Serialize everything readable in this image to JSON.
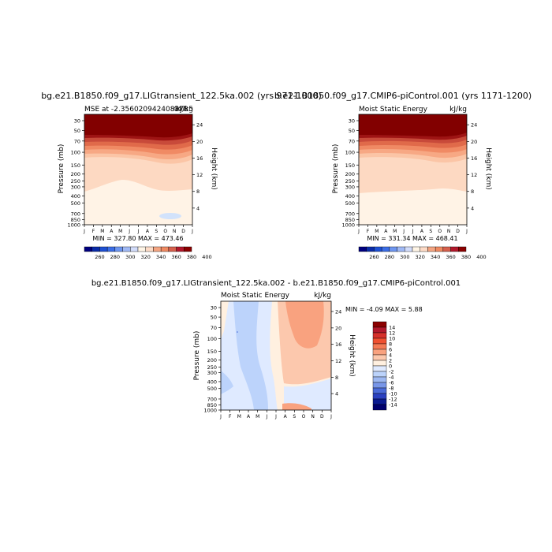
{
  "chart_data": [
    {
      "type": "heatmap",
      "title": "bg.e21.B1850.f09_g17.LIGtransient_122.5ka.002 (yrs 971-1000)",
      "subtitle_left": "MSE at -2.356020942408378",
      "subtitle_right": "kJ/kg",
      "subtitle_overlap": "447.5",
      "variable": "Moist Static Energy",
      "units": "kJ/kg",
      "xlabel": "",
      "x_ticks": [
        "J",
        "F",
        "M",
        "A",
        "M",
        "J",
        "J",
        "A",
        "S",
        "O",
        "N",
        "D",
        "J"
      ],
      "ylabel_left": "Pressure (mb)",
      "y_ticks_left": [
        "30",
        "50",
        "70",
        "100",
        "150",
        "200",
        "250",
        "300",
        "400",
        "500",
        "700",
        "850",
        "1000"
      ],
      "ylabel_right": "Height (km)",
      "y_ticks_right": [
        "24",
        "20",
        "16",
        "12",
        "8",
        "4"
      ],
      "min": 327.8,
      "max": 473.46,
      "minmax_text": "MIN = 327.80 MAX = 473.46",
      "colorbar_labels": [
        "260",
        "280",
        "300",
        "320",
        "340",
        "360",
        "380",
        "400"
      ]
    },
    {
      "type": "heatmap",
      "title": "b.e21.B1850.f09_g17.CMIP6-piControl.001 (yrs 1171-1200)",
      "subtitle_left": "Moist Static Energy",
      "subtitle_right": "kJ/kg",
      "variable": "Moist Static Energy",
      "units": "kJ/kg",
      "xlabel": "",
      "x_ticks": [
        "J",
        "F",
        "M",
        "A",
        "M",
        "J",
        "J",
        "A",
        "S",
        "O",
        "N",
        "D",
        "J"
      ],
      "ylabel_left": "Pressure (mb)",
      "y_ticks_left": [
        "30",
        "50",
        "70",
        "100",
        "150",
        "200",
        "250",
        "300",
        "400",
        "500",
        "700",
        "850",
        "1000"
      ],
      "ylabel_right": "Height (km)",
      "y_ticks_right": [
        "24",
        "20",
        "16",
        "12",
        "8",
        "4"
      ],
      "min": 331.34,
      "max": 468.41,
      "minmax_text": "MIN = 331.34 MAX = 468.41",
      "colorbar_labels": [
        "260",
        "280",
        "300",
        "320",
        "340",
        "360",
        "380",
        "400"
      ]
    },
    {
      "type": "heatmap",
      "title": "bg.e21.B1850.f09_g17.LIGtransient_122.5ka.002 - b.e21.B1850.f09_g17.CMIP6-piControl.001",
      "subtitle_left": "Moist Static Energy",
      "subtitle_right": "kJ/kg",
      "variable": "Moist Static Energy",
      "units": "kJ/kg",
      "xlabel": "",
      "x_ticks": [
        "J",
        "F",
        "M",
        "A",
        "M",
        "J",
        "J",
        "A",
        "S",
        "O",
        "N",
        "D",
        "J"
      ],
      "ylabel_left": "Pressure (mb)",
      "y_ticks_left": [
        "30",
        "50",
        "70",
        "100",
        "150",
        "200",
        "250",
        "300",
        "400",
        "500",
        "700",
        "850",
        "1000"
      ],
      "ylabel_right": "Height (km)",
      "y_ticks_right": [
        "24",
        "20",
        "16",
        "12",
        "8",
        "4"
      ],
      "min": -4.09,
      "max": 5.88,
      "minmax_text": "MIN = -4.09 MAX = 5.88",
      "colorbar_labels": [
        "14",
        "12",
        "10",
        "8",
        "6",
        "4",
        "2",
        "0",
        "-2",
        "-4",
        "-6",
        "-8",
        "-10",
        "-12",
        "-14"
      ]
    }
  ],
  "colors": {
    "abs_scale": [
      "#00007f",
      "#0a2ca8",
      "#1e50d2",
      "#3c6ee6",
      "#6e96f0",
      "#a0b9f5",
      "#d2dcfa",
      "#fff5e6",
      "#fddbc7",
      "#f4a582",
      "#ef8a62",
      "#d6604d",
      "#b2182b",
      "#8b0000"
    ],
    "diff_scale": [
      "#8b0000",
      "#b2182b",
      "#d6302a",
      "#ef5030",
      "#f47a55",
      "#f9a27f",
      "#fcc8ad",
      "#fff0e0",
      "#dfeaff",
      "#bcd3fb",
      "#9db8f2",
      "#7896e8",
      "#4a6ad8",
      "#2a40c0",
      "#0a1a90",
      "#00006e"
    ]
  }
}
